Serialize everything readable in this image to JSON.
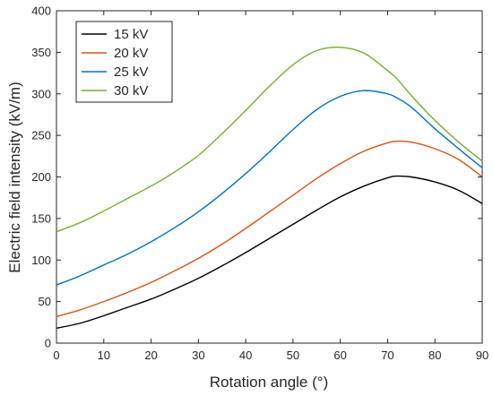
{
  "chart_data": {
    "type": "line",
    "title": "",
    "xlabel": "Rotation angle (°)",
    "ylabel": "Electric field intensity (kV/m)",
    "xlim": [
      0,
      90
    ],
    "ylim": [
      0,
      400
    ],
    "xticks": [
      0,
      10,
      20,
      30,
      40,
      50,
      60,
      70,
      80,
      90
    ],
    "yticks": [
      0,
      50,
      100,
      150,
      200,
      250,
      300,
      350,
      400
    ],
    "grid": false,
    "legend_position": "top-left",
    "x": [
      0,
      5,
      10,
      15,
      20,
      25,
      30,
      35,
      40,
      45,
      50,
      55,
      60,
      65,
      70,
      72,
      75,
      80,
      85,
      90
    ],
    "series": [
      {
        "name": "15 kV",
        "color": "#000000",
        "values": [
          18,
          24,
          33,
          43,
          53,
          65,
          78,
          93,
          109,
          126,
          143,
          160,
          176,
          189,
          199,
          201,
          200,
          194,
          184,
          168
        ]
      },
      {
        "name": "20 kV",
        "color": "#d95319",
        "values": [
          32,
          40,
          50,
          61,
          73,
          87,
          102,
          119,
          138,
          158,
          178,
          198,
          216,
          231,
          241,
          243,
          242,
          234,
          221,
          200
        ]
      },
      {
        "name": "25 kV",
        "color": "#0072bd",
        "values": [
          70,
          81,
          94,
          107,
          122,
          139,
          158,
          180,
          204,
          230,
          257,
          281,
          297,
          304,
          300,
          295,
          284,
          258,
          234,
          211
        ]
      },
      {
        "name": "30 kV",
        "color": "#77ac30",
        "values": [
          134,
          145,
          159,
          174,
          189,
          206,
          226,
          252,
          280,
          309,
          335,
          352,
          356,
          349,
          328,
          318,
          298,
          268,
          242,
          219
        ]
      }
    ]
  }
}
